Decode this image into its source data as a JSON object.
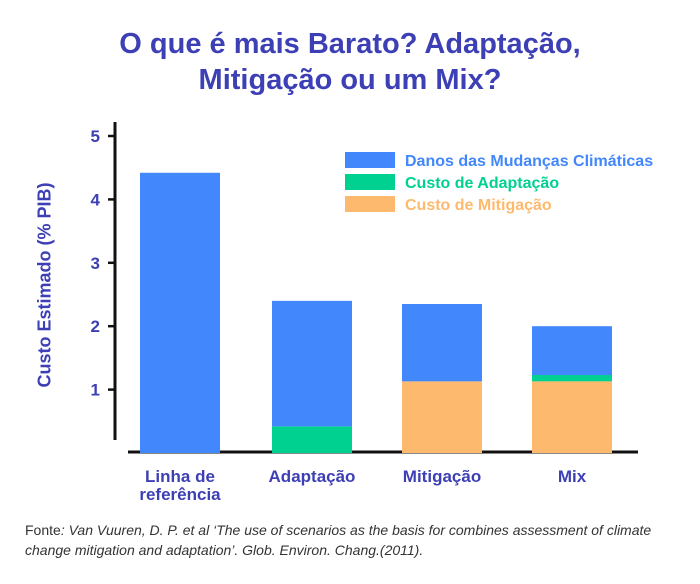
{
  "chart_data": {
    "type": "bar",
    "stacked": true,
    "title": "O que é mais Barato? Adaptação, Mitigação ou um Mix?",
    "xlabel": "",
    "ylabel": "Custo Estimado (% PIB)",
    "ylim": [
      0,
      5
    ],
    "yticks": [
      1,
      2,
      3,
      4,
      5
    ],
    "grid": false,
    "legend_position": "top-right",
    "categories": [
      "Linha de referência",
      "Adaptação",
      "Mitigação",
      "Mix"
    ],
    "series": [
      {
        "name": "Custo de Mitigação",
        "color": "#fdba6e",
        "values": [
          0,
          0,
          1.13,
          1.13
        ]
      },
      {
        "name": "Custo de Adaptação",
        "color": "#00d090",
        "values": [
          0,
          0.42,
          0,
          0.1
        ]
      },
      {
        "name": "Danos das Mudanças Climáticas",
        "color": "#4287fc",
        "values": [
          4.42,
          1.98,
          1.22,
          0.77
        ]
      }
    ],
    "legend_order": [
      2,
      1,
      0
    ]
  },
  "title_lines": [
    "O que é mais Barato? Adaptação,",
    "Mitigação ou um Mix?"
  ],
  "source": {
    "label": "Fonte",
    "text": ": Van Vuuren, D. P. et al ‘The use of scenarios as the basis for combines assessment of climate change mitigation and adaptation’. Glob. Environ. Chang.(2011)."
  },
  "colors": {
    "title": "#3d3fb5",
    "axis": "#111111"
  }
}
